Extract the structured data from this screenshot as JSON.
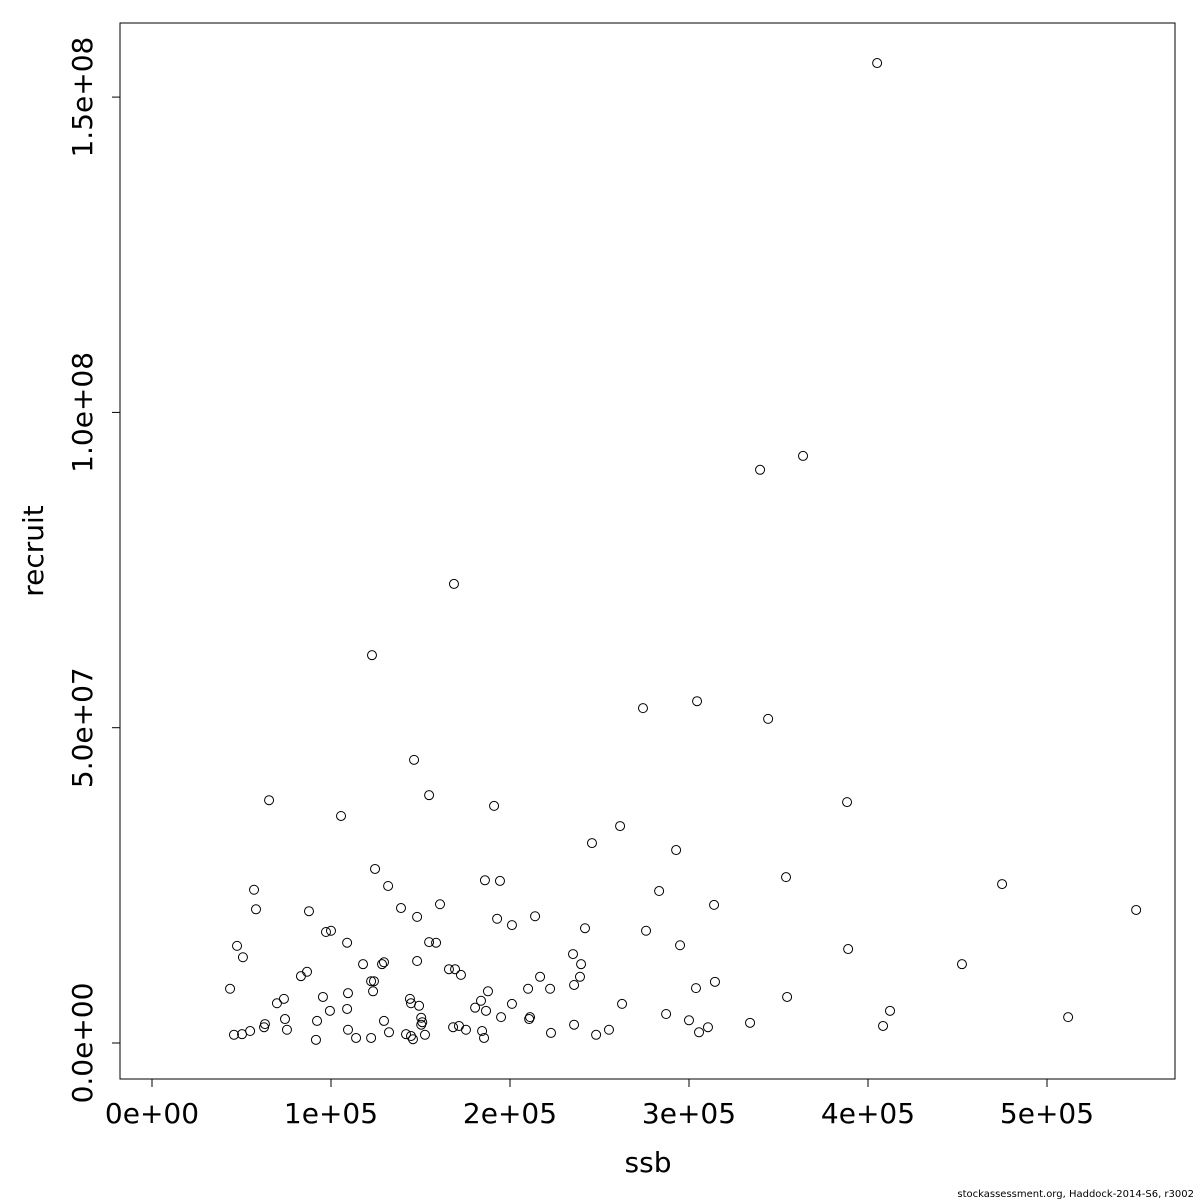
{
  "chart_data": {
    "type": "scatter",
    "x_label": "ssb",
    "y_label": "recruit",
    "color": "#000000",
    "x": [
      405100,
      363700,
      339700,
      168700,
      122900,
      304500,
      274300,
      344200,
      146400,
      154800,
      65400,
      388300,
      191100,
      105600,
      261500,
      245800,
      292800,
      124600,
      354200,
      186000,
      194400,
      474900,
      131900,
      57000,
      283300,
      160900,
      314000,
      58100,
      549800,
      87700,
      139100,
      148100,
      214000,
      192800,
      201100,
      241900,
      100000,
      97200,
      276000,
      109000,
      154800,
      158700,
      295000,
      47500,
      388900,
      235200,
      50800,
      148100,
      129600,
      128500,
      117900,
      239700,
      452500,
      165900,
      169300,
      172600,
      86600,
      83200,
      239100,
      216800,
      124000,
      122400,
      235800,
      314500,
      43600,
      210100,
      222400,
      303900,
      187700,
      123500,
      109500,
      95500,
      144100,
      73700,
      183800,
      144700,
      69800,
      201100,
      262600,
      149200,
      354800,
      180500,
      109000,
      99400,
      186600,
      412300,
      287200,
      511800,
      211200,
      150400,
      195000,
      74300,
      210700,
      300000,
      92200,
      129600,
      151000,
      63100,
      334100,
      235800,
      150400,
      62600,
      168200,
      171500,
      310600,
      408400,
      109500,
      75400,
      175400,
      54800,
      255300,
      184400,
      132400,
      50300,
      305600,
      222900,
      141900,
      45800,
      152500,
      144700,
      248100,
      114000,
      122400,
      145800,
      185500,
      91600
    ],
    "values": [
      155400000,
      93100000,
      90900000,
      72800000,
      61500000,
      54200000,
      53100000,
      51400000,
      44900000,
      39300000,
      38500000,
      38200000,
      37600000,
      36000000,
      34400000,
      31700000,
      30600000,
      27600000,
      26300000,
      25800000,
      25700000,
      25200000,
      24900000,
      24300000,
      24100000,
      22000000,
      21900000,
      21200000,
      21100000,
      20900000,
      21400000,
      20000000,
      20100000,
      19700000,
      18700000,
      18200000,
      17800000,
      17600000,
      17800000,
      15900000,
      16000000,
      15900000,
      15500000,
      15400000,
      14900000,
      14100000,
      13600000,
      13000000,
      12800000,
      12500000,
      12500000,
      12500000,
      12500000,
      11700000,
      11700000,
      10800000,
      11300000,
      10600000,
      10500000,
      10500000,
      9800000,
      9800000,
      9200000,
      9700000,
      8600000,
      8600000,
      8600000,
      8700000,
      8200000,
      8200000,
      7900000,
      7300000,
      7000000,
      7000000,
      6700000,
      6300000,
      6300000,
      6200000,
      6200000,
      5900000,
      7300000,
      5600000,
      5400000,
      5100000,
      5100000,
      5100000,
      4600000,
      4100000,
      4100000,
      4000000,
      4100000,
      3800000,
      3800000,
      3600000,
      3500000,
      3500000,
      3300000,
      3000000,
      3200000,
      2900000,
      2900000,
      2500000,
      2500000,
      2700000,
      2500000,
      2700000,
      2100000,
      2100000,
      2100000,
      1900000,
      2100000,
      1900000,
      1700000,
      1400000,
      1700000,
      1600000,
      1400000,
      1300000,
      1300000,
      1100000,
      1300000,
      800000,
      800000,
      600000,
      800000,
      500000
    ],
    "xlim": [
      -17877,
      571508
    ],
    "ylim": [
      -5709000,
      161750000
    ],
    "xticks": [
      {
        "value": 0,
        "label": "0e+00"
      },
      {
        "value": 100000,
        "label": "1e+05"
      },
      {
        "value": 200000,
        "label": "2e+05"
      },
      {
        "value": 300000,
        "label": "3e+05"
      },
      {
        "value": 400000,
        "label": "4e+05"
      },
      {
        "value": 500000,
        "label": "5e+05"
      }
    ],
    "yticks": [
      {
        "value": 0,
        "label": "0.0e+00"
      },
      {
        "value": 50000000,
        "label": "5.0e+07"
      },
      {
        "value": 100000000,
        "label": "1.0e+08"
      },
      {
        "value": 150000000,
        "label": "1.5e+08"
      }
    ]
  },
  "footer": "stockassessment.org, Haddock-2014-S6, r3002"
}
